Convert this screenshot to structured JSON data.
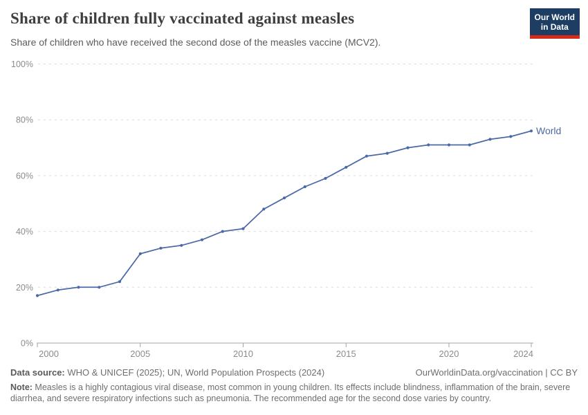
{
  "header": {
    "title": "Share of children fully vaccinated against measles",
    "subtitle": "Share of children who have received the second dose of the measles vaccine (MCV2).",
    "logo": {
      "line1": "Our World",
      "line2": "in Data"
    }
  },
  "chart_data": {
    "type": "line",
    "title": "Share of children fully vaccinated against measles",
    "subtitle": "Share of children who have received the second dose of the measles vaccine (MCV2).",
    "xlabel": "",
    "ylabel": "",
    "unit": "%",
    "xlim": [
      2000,
      2024
    ],
    "ylim": [
      0,
      100
    ],
    "x_ticks": [
      2000,
      2005,
      2010,
      2015,
      2020,
      2024
    ],
    "y_ticks": [
      0,
      20,
      40,
      60,
      80,
      100
    ],
    "y_tick_suffix": "%",
    "grid": "horizontal-dashed",
    "legend": "inline-end-label",
    "series": [
      {
        "name": "World",
        "color": "#4b69a7",
        "x": [
          2000,
          2001,
          2002,
          2003,
          2004,
          2005,
          2006,
          2007,
          2008,
          2009,
          2010,
          2011,
          2012,
          2013,
          2014,
          2015,
          2016,
          2017,
          2018,
          2019,
          2020,
          2021,
          2022,
          2023,
          2024
        ],
        "values": [
          17,
          19,
          20,
          20,
          22,
          32,
          34,
          35,
          37,
          40,
          41,
          48,
          52,
          56,
          59,
          63,
          67,
          68,
          70,
          71,
          71,
          71,
          73,
          74,
          76
        ]
      }
    ]
  },
  "footer": {
    "datasource_label": "Data source:",
    "datasource_text": " WHO & UNICEF (2025); UN, World Population Prospects (2024)",
    "attribution": "OurWorldinData.org/vaccination | CC BY",
    "note_label": "Note:",
    "note_text": " Measles is a highly contagious viral disease, most common in young children. Its effects include blindness, inflammation of the brain, severe diarrhea, and severe respiratory infections such as pneumonia. The recommended age for the second dose varies by country."
  },
  "colors": {
    "title": "#3e3e3e",
    "subtitle": "#5b5b5b",
    "axis": "#a3a3a3",
    "gridline": "#dcdcdc",
    "tick_label": "#8b8b8b",
    "logo_bg": "#1d3d63",
    "logo_stripe": "#d8291c",
    "series_world": "#4b69a7"
  }
}
